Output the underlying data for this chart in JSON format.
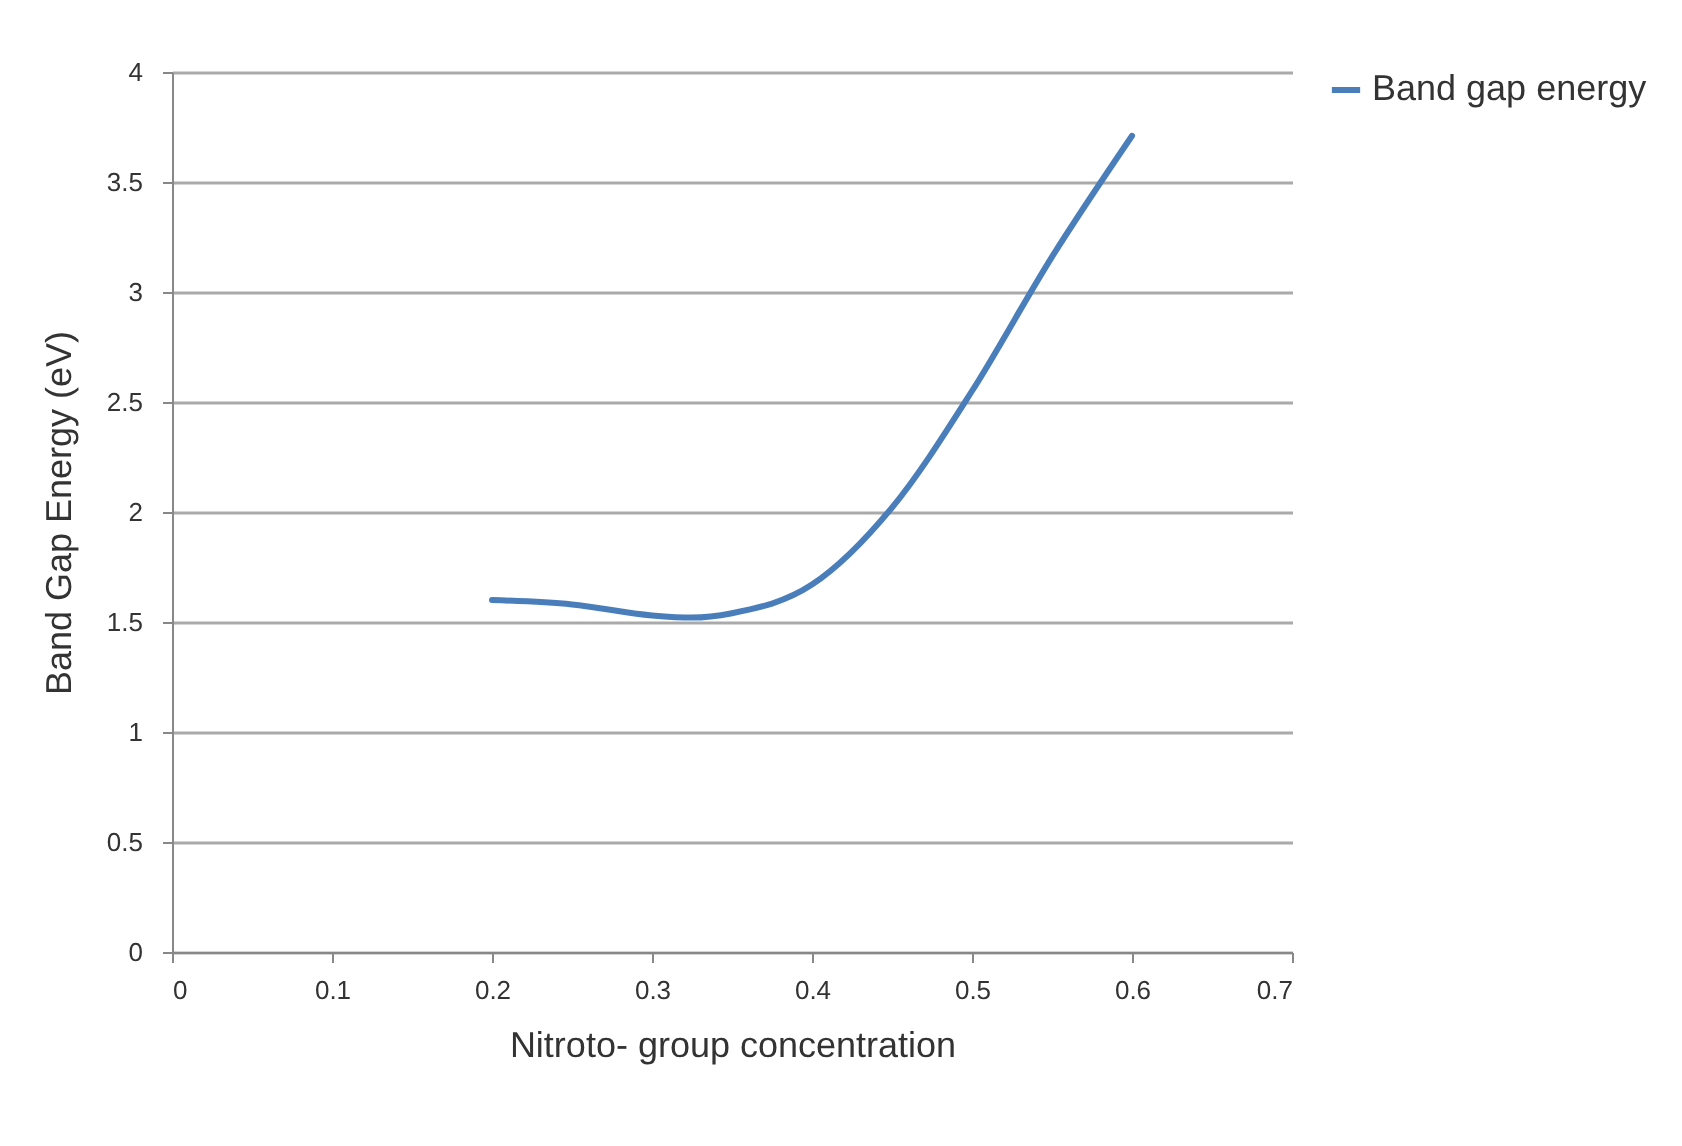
{
  "chart_data": {
    "type": "line",
    "xlabel": "Nitroto- group concentration",
    "ylabel": "Band Gap Energy (eV)",
    "x": [
      0.2,
      0.25,
      0.3,
      0.325,
      0.35,
      0.4,
      0.45,
      0.5,
      0.55,
      0.6
    ],
    "series": [
      {
        "name": "Band gap energy",
        "color": "#4a7ebb",
        "values": [
          1.6,
          1.58,
          1.53,
          1.52,
          1.54,
          1.67,
          2.02,
          2.55,
          3.16,
          3.71
        ]
      }
    ],
    "xlim": [
      0,
      0.7
    ],
    "xticks": [
      0,
      0.1,
      0.2,
      0.3,
      0.4,
      0.5,
      0.6,
      0.7
    ],
    "ylim": [
      0,
      4
    ],
    "yticks": [
      0,
      0.5,
      1,
      1.5,
      2,
      2.5,
      3,
      3.5,
      4
    ],
    "grid": "y",
    "legend": "right",
    "marker": "none",
    "line_style": "solid"
  }
}
